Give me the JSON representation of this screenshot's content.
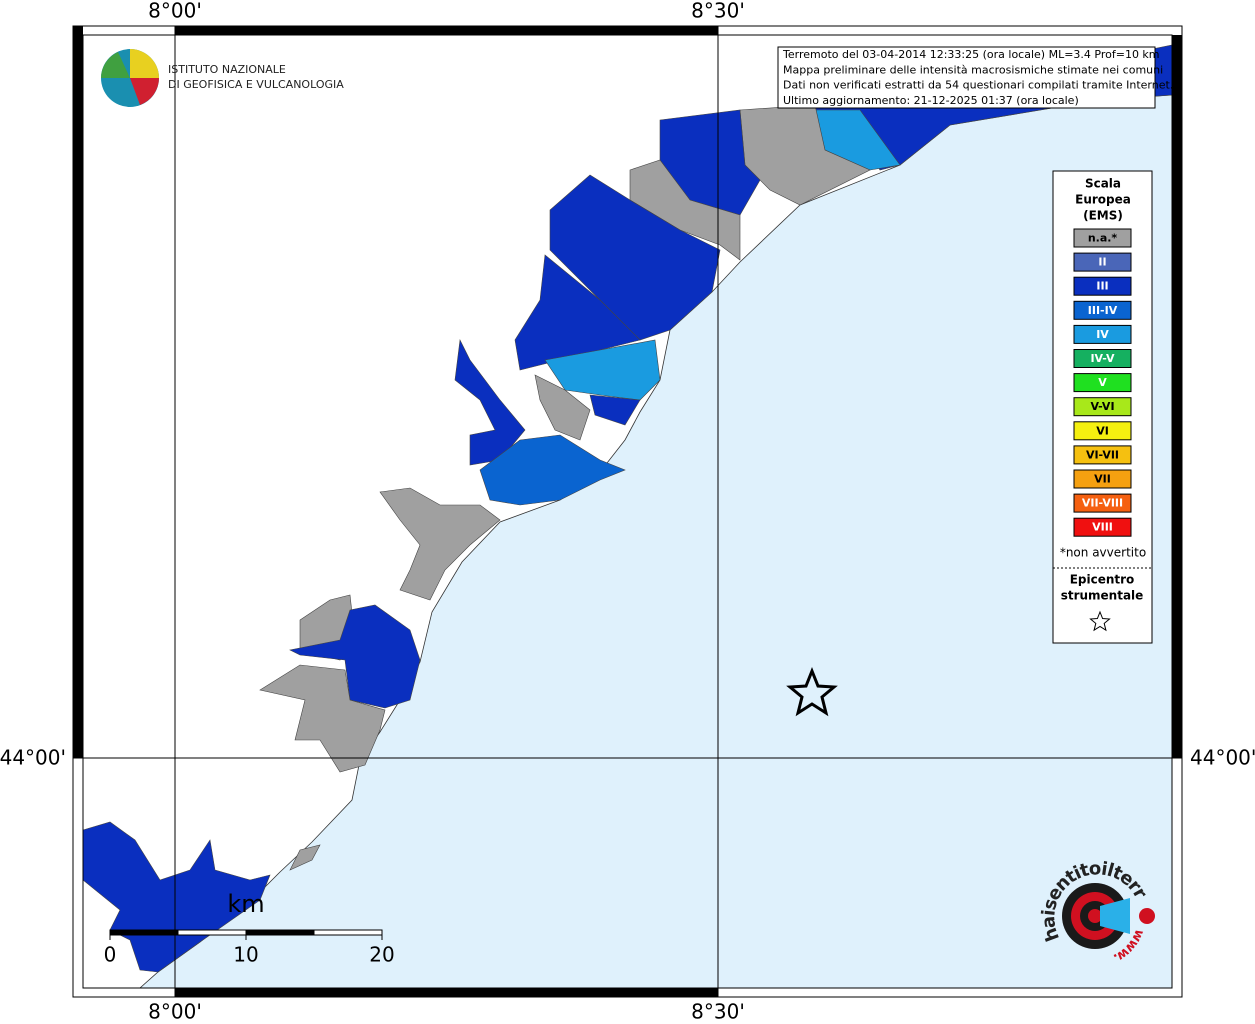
{
  "map": {
    "lon_labels": [
      "8°00'",
      "8°30'"
    ],
    "lat_labels": [
      "44°00'"
    ],
    "info": [
      "Terremoto del 03-04-2014 12:33:25 (ora locale) ML=3.4 Prof=10 km",
      "Mappa preliminare delle intensità macrosismiche stimate nei comuni",
      "Dati non verificati estratti da 54 questionari compilati tramite Internet.",
      "Ultimo aggiornamento: 21-12-2025 01:37 (ora locale)"
    ]
  },
  "logo": {
    "lines": [
      "ISTITUTO NAZIONALE",
      "DI GEOFISICA E VULCANOLOGIA"
    ]
  },
  "legend": {
    "title": [
      "Scala",
      "Europea",
      "(EMS)"
    ],
    "items": [
      {
        "label": "n.a.*",
        "color": "#a0a0a0"
      },
      {
        "label": "II",
        "color": "#4a66b8"
      },
      {
        "label": "III",
        "color": "#0a2fbf"
      },
      {
        "label": "III-IV",
        "color": "#0a64d0"
      },
      {
        "label": "IV",
        "color": "#1a9be0"
      },
      {
        "label": "IV-V",
        "color": "#15b060"
      },
      {
        "label": "V",
        "color": "#1fe020"
      },
      {
        "label": "V-VI",
        "color": "#a8e81a"
      },
      {
        "label": "VI",
        "color": "#f5f010"
      },
      {
        "label": "VI-VII",
        "color": "#f5c010"
      },
      {
        "label": "VII",
        "color": "#f5a010"
      },
      {
        "label": "VII-VIII",
        "color": "#f56010"
      },
      {
        "label": "VIII",
        "color": "#f01010"
      }
    ],
    "note": "*non avvertito",
    "epicenter": [
      "Epicentro",
      "strumentale"
    ]
  },
  "scale_bar": {
    "unit": "km",
    "labels": [
      0,
      10,
      20
    ]
  },
  "site_logo": {
    "name": "haisentitoilterremoto.it",
    "prefix": "www."
  }
}
